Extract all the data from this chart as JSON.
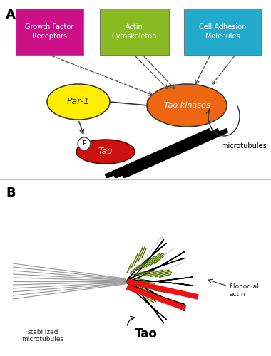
{
  "fig_width": 3.8,
  "fig_height": 5.0,
  "dpi": 100,
  "bg_color": "#ffffff",
  "panel_A_label": "A",
  "panel_B_label": "B",
  "box1_text": "Growth Factor\nReceptors",
  "box1_color": "#cc1188",
  "box2_text": "Actin\nCytoskeleton",
  "box2_color": "#88bb22",
  "box3_text": "Cell Adhesion\nMolecules",
  "box3_color": "#22aacc",
  "box_text_color": "#ffffff",
  "par1_color": "#ffee00",
  "par1_text": "Par-1",
  "tao_kinases_color": "#ee6611",
  "tao_kinases_text": "Tao kinases",
  "tau_color": "#cc1111",
  "tau_text": "Tau",
  "microtubules_text": "microtubules",
  "phospho_text": "P",
  "stabilized_mt_text": "stabilized\nmicrotubules",
  "filopodial_actin_text": "filopodial\nactin",
  "tao_text": "Tao",
  "green_color": "#557700"
}
